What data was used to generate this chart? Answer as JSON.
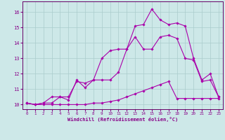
{
  "xlabel": "Windchill (Refroidissement éolien,°C)",
  "background_color": "#cde8e8",
  "grid_color": "#aacccc",
  "line_color": "#aa00aa",
  "xlim": [
    -0.5,
    23.5
  ],
  "ylim": [
    9.7,
    16.7
  ],
  "xticks": [
    0,
    1,
    2,
    3,
    4,
    5,
    6,
    7,
    8,
    9,
    10,
    11,
    12,
    13,
    14,
    15,
    16,
    17,
    18,
    19,
    20,
    21,
    22,
    23
  ],
  "yticks": [
    10,
    11,
    12,
    13,
    14,
    15,
    16
  ],
  "series1_x": [
    0,
    1,
    2,
    3,
    4,
    5,
    6,
    7,
    8,
    9,
    10,
    11,
    12,
    13,
    14,
    15,
    16,
    17,
    18,
    19,
    20,
    21,
    22,
    23
  ],
  "series1_y": [
    10.1,
    10.0,
    10.1,
    10.5,
    10.5,
    10.3,
    11.6,
    11.1,
    11.6,
    13.0,
    13.5,
    13.6,
    13.6,
    15.1,
    15.2,
    16.2,
    15.5,
    15.2,
    15.3,
    15.1,
    13.0,
    11.6,
    12.0,
    10.5
  ],
  "series2_x": [
    0,
    1,
    2,
    3,
    4,
    5,
    6,
    7,
    8,
    9,
    10,
    11,
    12,
    13,
    14,
    15,
    16,
    17,
    18,
    19,
    20,
    21,
    22,
    23
  ],
  "series2_y": [
    10.1,
    10.0,
    10.1,
    10.1,
    10.5,
    10.5,
    11.5,
    11.4,
    11.6,
    11.6,
    11.6,
    12.1,
    13.6,
    14.4,
    13.6,
    13.6,
    14.4,
    14.5,
    14.3,
    13.0,
    12.9,
    11.5,
    11.6,
    10.5
  ],
  "series3_x": [
    0,
    1,
    2,
    3,
    4,
    5,
    6,
    7,
    8,
    9,
    10,
    11,
    12,
    13,
    14,
    15,
    16,
    17,
    18,
    19,
    20,
    21,
    22,
    23
  ],
  "series3_y": [
    10.1,
    10.0,
    10.0,
    10.0,
    10.0,
    10.0,
    10.0,
    10.0,
    10.1,
    10.1,
    10.2,
    10.3,
    10.5,
    10.7,
    10.9,
    11.1,
    11.3,
    11.5,
    10.4,
    10.4,
    10.4,
    10.4,
    10.4,
    10.4
  ]
}
